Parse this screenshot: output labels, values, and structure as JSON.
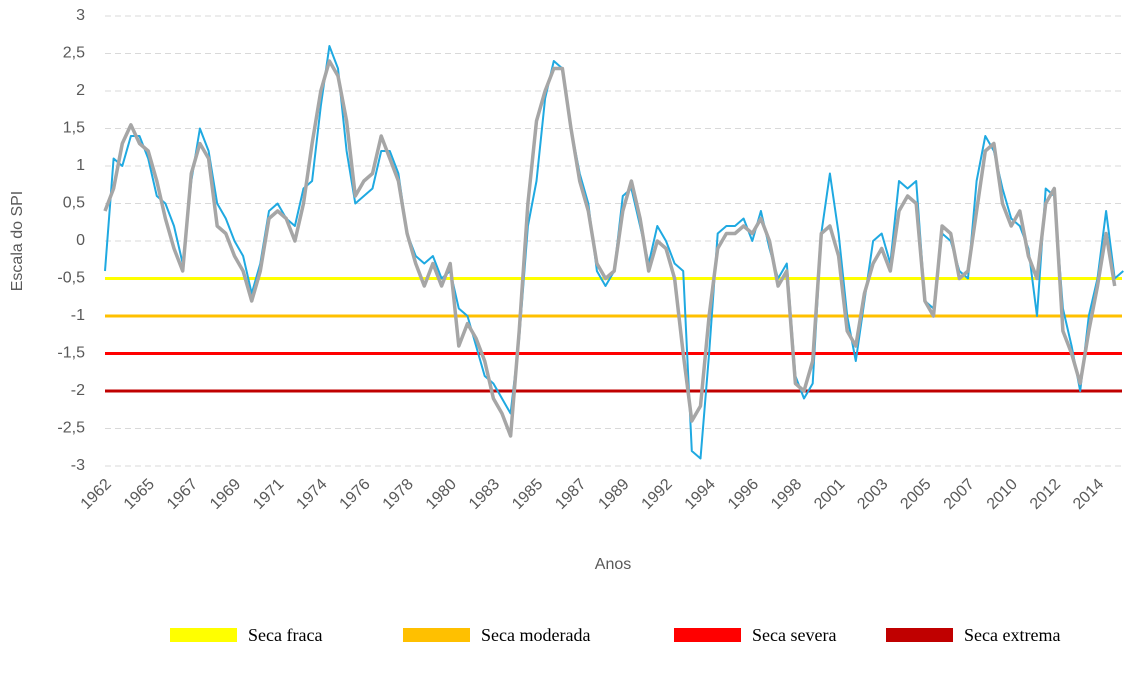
{
  "chart_data": {
    "type": "line",
    "y_label": "Escala do SPI",
    "x_label": "Anos",
    "categories": [
      "1962",
      null,
      null,
      null,
      null,
      "1965",
      null,
      null,
      null,
      null,
      "1967",
      null,
      null,
      null,
      null,
      "1969",
      null,
      null,
      null,
      null,
      "1971",
      null,
      null,
      null,
      null,
      "1974",
      null,
      null,
      null,
      null,
      "1976",
      null,
      null,
      null,
      null,
      "1978",
      null,
      null,
      null,
      null,
      "1980",
      null,
      null,
      null,
      null,
      "1983",
      null,
      null,
      null,
      null,
      "1985",
      null,
      null,
      null,
      null,
      "1987",
      null,
      null,
      null,
      null,
      "1989",
      null,
      null,
      null,
      null,
      "1992",
      null,
      null,
      null,
      null,
      "1994",
      null,
      null,
      null,
      null,
      "1996",
      null,
      null,
      null,
      null,
      "1998",
      null,
      null,
      null,
      null,
      "2001",
      null,
      null,
      null,
      null,
      "2003",
      null,
      null,
      null,
      null,
      "2005",
      null,
      null,
      null,
      null,
      "2007",
      null,
      null,
      null,
      null,
      "2010",
      null,
      null,
      null,
      null,
      "2012",
      null,
      null,
      null,
      null,
      "2014",
      null,
      null,
      null
    ],
    "series": [
      {
        "color": "#1fa9e1",
        "width": 2,
        "values": [
          -0.4,
          1.1,
          1.0,
          1.4,
          1.4,
          1.1,
          0.6,
          0.5,
          0.2,
          -0.3,
          0.8,
          1.5,
          1.2,
          0.5,
          0.3,
          0.0,
          -0.2,
          -0.7,
          -0.3,
          0.4,
          0.5,
          0.3,
          0.2,
          0.7,
          0.8,
          1.8,
          2.6,
          2.3,
          1.2,
          0.5,
          0.6,
          0.7,
          1.2,
          1.2,
          0.9,
          0.1,
          -0.2,
          -0.3,
          -0.2,
          -0.5,
          -0.4,
          -0.9,
          -1.0,
          -1.4,
          -1.8,
          -1.9,
          -2.1,
          -2.3,
          -1.3,
          0.2,
          0.8,
          1.9,
          2.4,
          2.3,
          1.5,
          0.9,
          0.5,
          -0.4,
          -0.6,
          -0.4,
          0.6,
          0.7,
          0.2,
          -0.3,
          0.2,
          0.0,
          -0.3,
          -0.4,
          -2.8,
          -2.9,
          -1.5,
          0.1,
          0.2,
          0.2,
          0.3,
          0.0,
          0.4,
          -0.1,
          -0.5,
          -0.3,
          -1.8,
          -2.1,
          -1.9,
          0.1,
          0.9,
          0.1,
          -1.0,
          -1.6,
          -0.8,
          0.0,
          0.1,
          -0.3,
          0.8,
          0.7,
          0.8,
          -0.8,
          -0.9,
          0.1,
          0.0,
          -0.4,
          -0.5,
          0.8,
          1.4,
          1.2,
          0.7,
          0.3,
          0.2,
          -0.1,
          -1.0,
          0.7,
          0.6,
          -0.9,
          -1.4,
          -2.0,
          -1.0,
          -0.5,
          0.4,
          -0.5,
          -0.4
        ]
      },
      {
        "color": "#a6a6a6",
        "width": 3.5,
        "values": [
          0.4,
          0.7,
          1.3,
          1.55,
          1.3,
          1.2,
          0.8,
          0.3,
          -0.1,
          -0.4,
          0.9,
          1.3,
          1.1,
          0.2,
          0.1,
          -0.2,
          -0.4,
          -0.8,
          -0.4,
          0.3,
          0.4,
          0.3,
          0.0,
          0.5,
          1.3,
          2.0,
          2.4,
          2.2,
          1.6,
          0.6,
          0.8,
          0.9,
          1.4,
          1.1,
          0.8,
          0.1,
          -0.3,
          -0.6,
          -0.3,
          -0.6,
          -0.3,
          -1.4,
          -1.1,
          -1.3,
          -1.6,
          -2.1,
          -2.3,
          -2.6,
          -1.2,
          0.5,
          1.6,
          2.0,
          2.3,
          2.3,
          1.5,
          0.8,
          0.4,
          -0.3,
          -0.5,
          -0.4,
          0.4,
          0.8,
          0.3,
          -0.4,
          0.0,
          -0.1,
          -0.5,
          -1.5,
          -2.4,
          -2.2,
          -1.0,
          -0.1,
          0.1,
          0.1,
          0.2,
          0.1,
          0.3,
          0.0,
          -0.6,
          -0.4,
          -1.9,
          -2.0,
          -1.6,
          0.1,
          0.2,
          -0.2,
          -1.2,
          -1.4,
          -0.7,
          -0.3,
          -0.1,
          -0.4,
          0.4,
          0.6,
          0.5,
          -0.8,
          -1.0,
          0.2,
          0.1,
          -0.5,
          -0.4,
          0.4,
          1.2,
          1.3,
          0.5,
          0.2,
          0.4,
          -0.2,
          -0.5,
          0.5,
          0.7,
          -1.2,
          -1.5,
          -1.9,
          -1.2,
          -0.6,
          0.1,
          -0.6,
          null
        ]
      }
    ],
    "thresholds": [
      {
        "name": "Seca fraca",
        "color": "#ffff00",
        "value": -0.5
      },
      {
        "name": "Seca moderada",
        "color": "#ffc000",
        "value": -1
      },
      {
        "name": "Seca severa",
        "color": "#ff0000",
        "value": -1.5
      },
      {
        "name": "Seca extrema",
        "color": "#c00000",
        "value": -2
      }
    ],
    "ylim": [
      -3,
      3
    ],
    "yticks": [
      -3,
      {
        "value": -2.5,
        "label": "-2,5"
      },
      -2,
      {
        "value": -1.5,
        "label": "-1,5"
      },
      -1,
      {
        "value": -0.5,
        "label": "-0,5"
      },
      0,
      {
        "value": 0.5,
        "label": "0,5"
      },
      1,
      {
        "value": 1.5,
        "label": "1,5"
      },
      2,
      {
        "value": 2.5,
        "label": "2,5"
      },
      3
    ],
    "grid": true,
    "legend": "bottom"
  }
}
